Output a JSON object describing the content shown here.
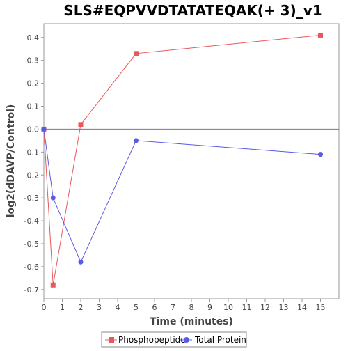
{
  "chart_data": {
    "type": "line",
    "title": "SLS#EQPVVDTATATEQAK(+ 3)_v1",
    "xlabel": "Time (minutes)",
    "ylabel": "log2(dDAVP/Control)",
    "xlim": [
      0,
      16
    ],
    "ylim": [
      -0.74,
      0.46
    ],
    "xticks": [
      0,
      1,
      2,
      3,
      4,
      5,
      6,
      7,
      8,
      9,
      10,
      11,
      12,
      13,
      14,
      15
    ],
    "yticks": [
      -0.7,
      -0.6,
      -0.5,
      -0.4,
      -0.3,
      -0.2,
      -0.1,
      0.0,
      0.1,
      0.2,
      0.3,
      0.4
    ],
    "ytick_labels": [
      "-0.7",
      "-0.6",
      "-0.5",
      "-0.4",
      "-0.3",
      "-0.2",
      "-0.1",
      "0.0",
      "0.1",
      "0.2",
      "0.3",
      "0.4"
    ],
    "grid": false,
    "zero_line": true,
    "legend_position": "bottom",
    "series": [
      {
        "name": "Phosphopeptide",
        "color": "#e8585a",
        "marker": "square",
        "x": [
          0,
          0.5,
          2,
          5,
          15
        ],
        "y": [
          0.0,
          -0.68,
          0.02,
          0.33,
          0.41
        ]
      },
      {
        "name": "Total Protein",
        "color": "#5a5ae8",
        "marker": "circle",
        "x": [
          0,
          0.5,
          2,
          5,
          15
        ],
        "y": [
          0.0,
          -0.3,
          -0.58,
          -0.05,
          -0.11
        ]
      }
    ]
  }
}
